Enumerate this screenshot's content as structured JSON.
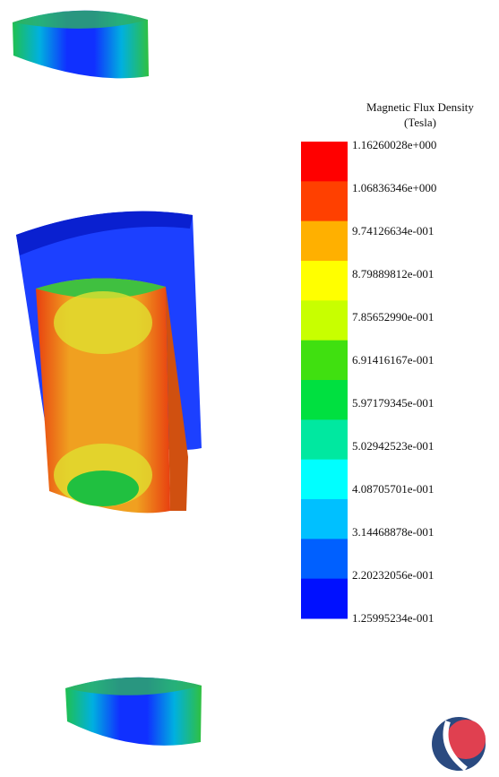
{
  "legend": {
    "title": "Magnetic Flux Density",
    "unit": "(Tesla)",
    "labels": [
      "1.16260028e+000",
      "1.06836346e+000",
      "9.74126634e-001",
      "8.79889812e-001",
      "7.85652990e-001",
      "6.91416167e-001",
      "5.97179345e-001",
      "5.02942523e-001",
      "4.08705701e-001",
      "3.14468878e-001",
      "2.20232056e-001",
      "1.25995234e-001"
    ],
    "colors": [
      "#ff0000",
      "#ff4000",
      "#ffb000",
      "#ffff00",
      "#c8ff00",
      "#40e010",
      "#00e040",
      "#00e8a0",
      "#00ffff",
      "#00c0ff",
      "#0060ff",
      "#0010ff"
    ]
  }
}
